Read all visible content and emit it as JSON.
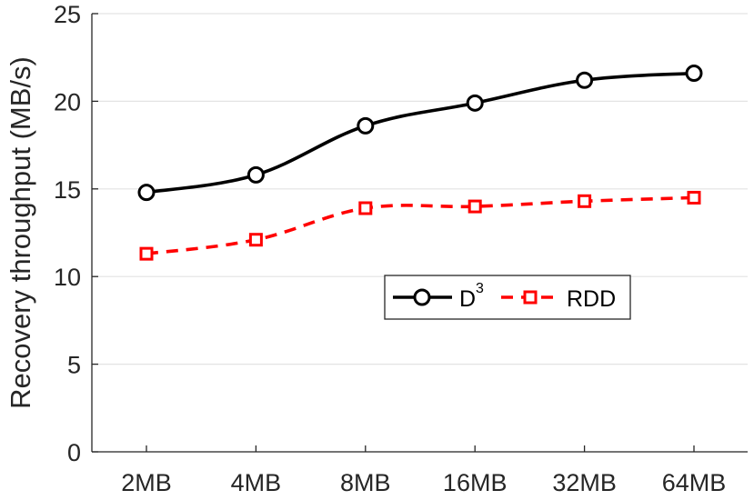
{
  "chart_data": {
    "type": "line",
    "categories": [
      "2MB",
      "4MB",
      "8MB",
      "16MB",
      "32MB",
      "64MB"
    ],
    "ylabel": "Recovery throughput (MB/s)",
    "xlabel": "",
    "ylim": [
      0,
      25
    ],
    "yticks": [
      0,
      5,
      10,
      15,
      20,
      25
    ],
    "grid": "horizontal",
    "legend_position": "center-right",
    "series": [
      {
        "name": "D",
        "name_superscript": "3",
        "values": [
          14.8,
          15.8,
          18.6,
          19.9,
          21.2,
          21.6
        ],
        "color": "#000000",
        "line_style": "solid",
        "marker": "circle"
      },
      {
        "name": "RDD",
        "values": [
          11.3,
          12.1,
          13.9,
          14.0,
          14.3,
          14.5
        ],
        "color": "#ff0000",
        "line_style": "dashed",
        "marker": "square"
      }
    ]
  }
}
